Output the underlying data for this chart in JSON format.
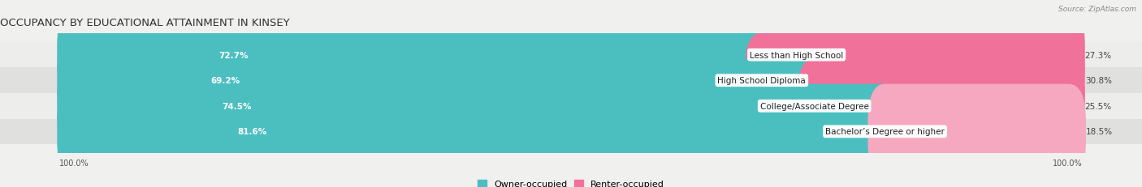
{
  "title": "OCCUPANCY BY EDUCATIONAL ATTAINMENT IN KINSEY",
  "source": "Source: ZipAtlas.com",
  "categories": [
    "Less than High School",
    "High School Diploma",
    "College/Associate Degree",
    "Bachelor’s Degree or higher"
  ],
  "owner_values": [
    72.7,
    69.2,
    74.5,
    81.6
  ],
  "renter_values": [
    27.3,
    30.8,
    25.5,
    18.5
  ],
  "owner_color": "#4bbfc0",
  "renter_colors": [
    "#f0719a",
    "#f0719a",
    "#f0719a",
    "#f5a8c0"
  ],
  "row_bg_colors": [
    "#ededec",
    "#e0e0df"
  ],
  "axis_label_left": "100.0%",
  "axis_label_right": "100.0%",
  "legend_owner": "Owner-occupied",
  "legend_renter": "Renter-occupied",
  "legend_owner_color": "#4bbfc0",
  "legend_renter_color": "#f0719a",
  "title_fontsize": 9.5,
  "source_fontsize": 6.5,
  "cat_label_fontsize": 7.5,
  "bar_label_fontsize": 7.5,
  "axis_label_fontsize": 7,
  "legend_fontsize": 8,
  "figsize": [
    14.06,
    2.32
  ],
  "dpi": 100
}
